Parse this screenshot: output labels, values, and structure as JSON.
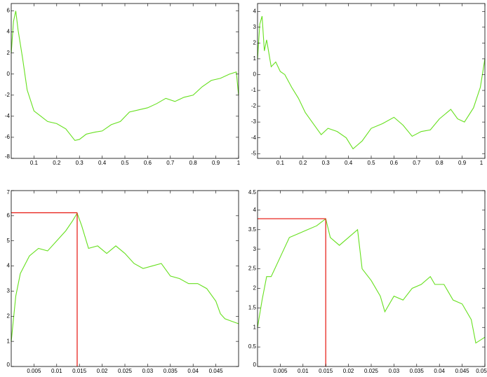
{
  "chart_data": [
    {
      "type": "line",
      "xlim": [
        0,
        1
      ],
      "ylim": [
        -8,
        6.7
      ],
      "xticks": [
        0.1,
        0.2,
        0.3,
        0.4,
        0.5,
        0.6,
        0.7,
        0.8,
        0.9,
        1
      ],
      "yticks": [
        -8,
        -6,
        -4,
        -2,
        0,
        2,
        4,
        6
      ],
      "x": [
        0,
        0.01,
        0.02,
        0.03,
        0.05,
        0.07,
        0.1,
        0.13,
        0.16,
        0.2,
        0.24,
        0.28,
        0.3,
        0.33,
        0.37,
        0.4,
        0.44,
        0.48,
        0.52,
        0.56,
        0.6,
        0.64,
        0.68,
        0.72,
        0.76,
        0.8,
        0.84,
        0.88,
        0.92,
        0.96,
        0.99,
        1
      ],
      "series": [
        {
          "color": "#66e01e",
          "values": [
            2,
            5,
            6,
            4.2,
            1.5,
            -1.5,
            -3.5,
            -4,
            -4.5,
            -4.7,
            -5.2,
            -6.3,
            -6.2,
            -5.7,
            -5.5,
            -5.4,
            -4.8,
            -4.5,
            -3.6,
            -3.4,
            -3.2,
            -2.8,
            -2.3,
            -2.6,
            -2.2,
            -2,
            -1.2,
            -0.6,
            -0.4,
            0,
            0.2,
            -2
          ]
        }
      ]
    },
    {
      "type": "line",
      "xlim": [
        0,
        1
      ],
      "ylim": [
        -5.3,
        4.5
      ],
      "xticks": [
        0.1,
        0.2,
        0.3,
        0.4,
        0.5,
        0.6,
        0.7,
        0.8,
        0.9,
        1
      ],
      "yticks": [
        -5,
        -4,
        -3,
        -2,
        -1,
        0,
        1,
        2,
        3,
        4
      ],
      "x": [
        0,
        0.01,
        0.02,
        0.03,
        0.04,
        0.06,
        0.08,
        0.1,
        0.12,
        0.15,
        0.18,
        0.21,
        0.25,
        0.28,
        0.31,
        0.35,
        0.39,
        0.42,
        0.46,
        0.5,
        0.55,
        0.6,
        0.64,
        0.68,
        0.72,
        0.76,
        0.8,
        0.85,
        0.88,
        0.91,
        0.95,
        0.98,
        1
      ],
      "series": [
        {
          "color": "#66e01e",
          "values": [
            1,
            3.2,
            3.7,
            1.5,
            2.2,
            0.5,
            0.8,
            0.2,
            0,
            -0.8,
            -1.5,
            -2.4,
            -3.2,
            -3.8,
            -3.4,
            -3.6,
            -4,
            -4.7,
            -4.2,
            -3.4,
            -3.1,
            -2.7,
            -3.2,
            -3.9,
            -3.6,
            -3.5,
            -2.8,
            -2.2,
            -2.8,
            -3,
            -2.1,
            -0.8,
            1
          ]
        }
      ]
    },
    {
      "type": "line",
      "xlim": [
        0,
        0.05
      ],
      "ylim": [
        0,
        7
      ],
      "xticks": [
        0.005,
        0.01,
        0.015,
        0.02,
        0.025,
        0.03,
        0.035,
        0.04,
        0.045
      ],
      "yticks": [
        0,
        1,
        2,
        3,
        4,
        5,
        6,
        7
      ],
      "x": [
        0,
        0.001,
        0.002,
        0.004,
        0.006,
        0.008,
        0.01,
        0.012,
        0.0135,
        0.0145,
        0.0155,
        0.017,
        0.019,
        0.021,
        0.023,
        0.025,
        0.027,
        0.029,
        0.031,
        0.033,
        0.035,
        0.037,
        0.039,
        0.041,
        0.043,
        0.045,
        0.046,
        0.047,
        0.0485,
        0.05
      ],
      "series": [
        {
          "color": "#66e01e",
          "values": [
            1,
            2.8,
            3.7,
            4.4,
            4.7,
            4.6,
            5,
            5.4,
            5.8,
            6.1,
            5.6,
            4.7,
            4.8,
            4.5,
            4.8,
            4.5,
            4.1,
            3.9,
            4,
            4.1,
            3.6,
            3.5,
            3.3,
            3.3,
            3.1,
            2.6,
            2.1,
            1.9,
            1.8,
            1.7
          ]
        }
      ],
      "marker_x": 0.0145,
      "marker_y": 6.12,
      "marker_color": "#e8261f"
    },
    {
      "type": "line",
      "xlim": [
        0,
        0.05
      ],
      "ylim": [
        0,
        4.5
      ],
      "xticks": [
        0.005,
        0.01,
        0.015,
        0.02,
        0.025,
        0.03,
        0.035,
        0.04,
        0.045,
        0.05
      ],
      "yticks": [
        0,
        0.5,
        1,
        1.5,
        2,
        2.5,
        3,
        3.5,
        4,
        4.5
      ],
      "x": [
        0,
        0.001,
        0.002,
        0.003,
        0.005,
        0.007,
        0.009,
        0.011,
        0.013,
        0.015,
        0.016,
        0.018,
        0.02,
        0.022,
        0.023,
        0.025,
        0.027,
        0.028,
        0.03,
        0.032,
        0.034,
        0.036,
        0.038,
        0.039,
        0.041,
        0.043,
        0.045,
        0.047,
        0.048,
        0.05
      ],
      "series": [
        {
          "color": "#66e01e",
          "values": [
            1,
            1.7,
            2.3,
            2.3,
            2.8,
            3.3,
            3.4,
            3.5,
            3.6,
            3.78,
            3.3,
            3.1,
            3.3,
            3.5,
            2.5,
            2.2,
            1.8,
            1.4,
            1.8,
            1.7,
            2,
            2.1,
            2.3,
            2.1,
            2.1,
            1.7,
            1.6,
            1.2,
            0.6,
            0.75
          ]
        }
      ],
      "marker_x": 0.015,
      "marker_y": 3.78,
      "marker_color": "#e8261f"
    }
  ]
}
